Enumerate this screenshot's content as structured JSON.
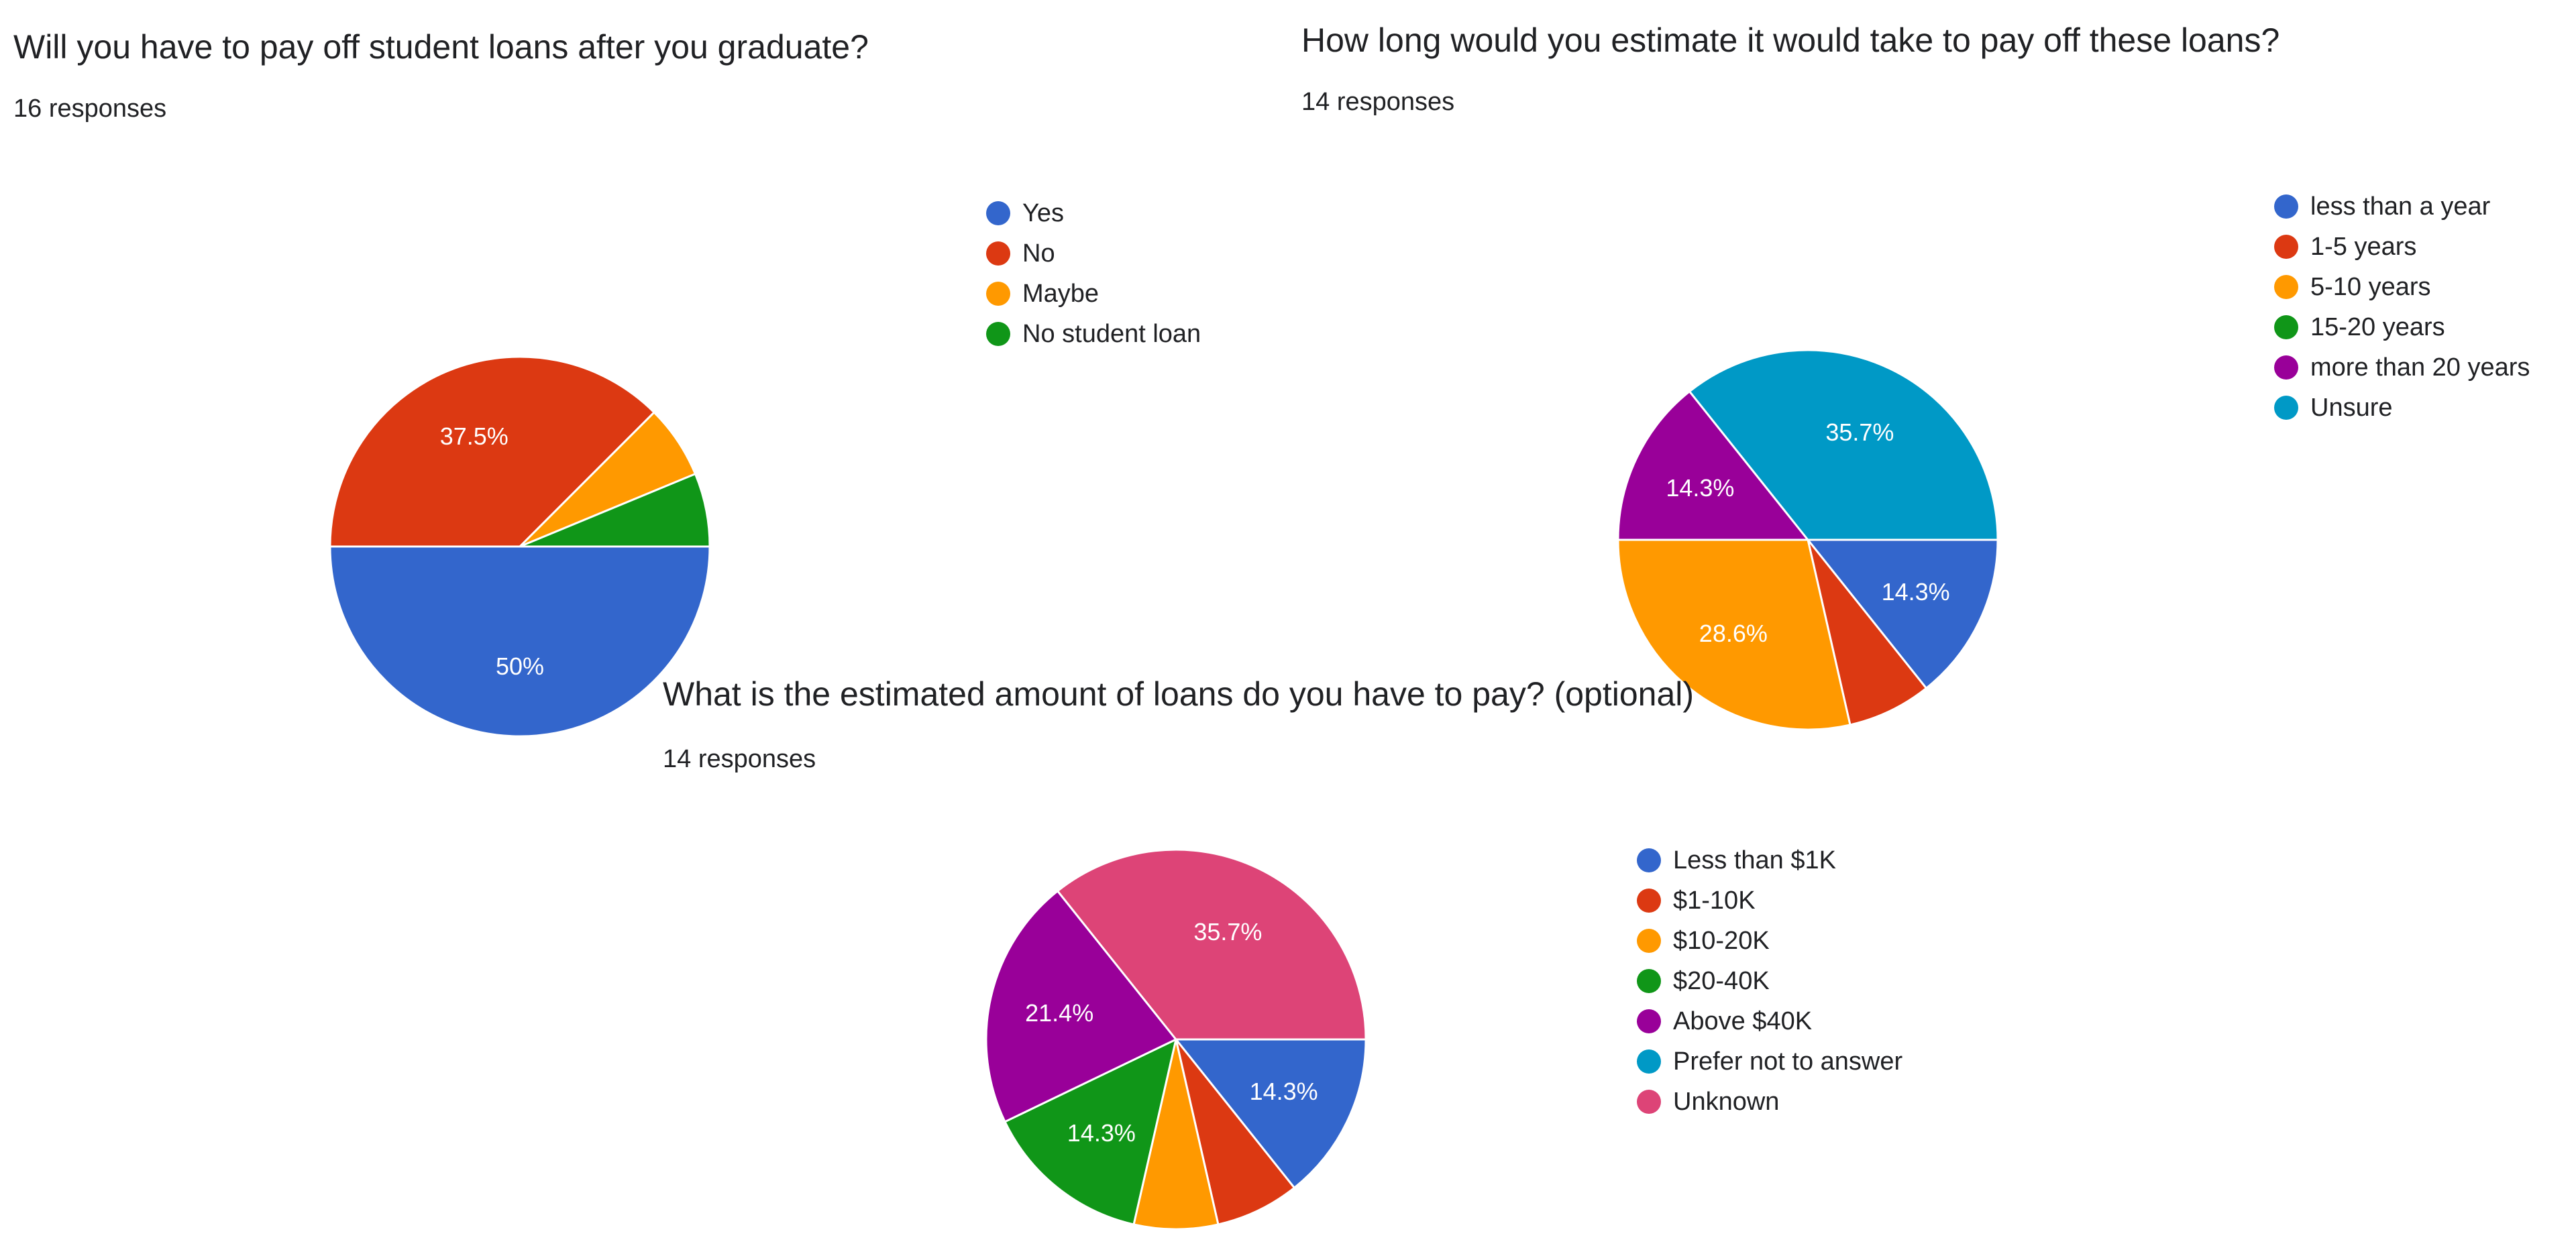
{
  "chart_data": [
    {
      "type": "pie",
      "title": "Will you have to pay off student loans after you graduate?",
      "subtitle": "16 responses",
      "categories": [
        "Yes",
        "No",
        "Maybe",
        "No student loan"
      ],
      "values": [
        8,
        6,
        1,
        1
      ],
      "percent_labels": [
        "50%",
        "37.5%",
        "",
        ""
      ],
      "colors": [
        "#3366cc",
        "#dc3912",
        "#ff9900",
        "#109618"
      ],
      "legend": "right"
    },
    {
      "type": "pie",
      "title": "How long would you estimate it would take to pay off these loans?",
      "subtitle": "14 responses",
      "categories": [
        "less than a year",
        "1-5 years",
        "5-10 years",
        "15-20 years",
        "more than 20 years",
        "Unsure"
      ],
      "values": [
        2,
        1,
        4,
        0,
        2,
        5
      ],
      "percent_labels": [
        "14.3%",
        "",
        "28.6%",
        "",
        "14.3%",
        "35.7%"
      ],
      "colors": [
        "#3366cc",
        "#dc3912",
        "#ff9900",
        "#109618",
        "#990099",
        "#0099c6"
      ],
      "legend": "right"
    },
    {
      "type": "pie",
      "title": "What is the estimated amount of loans do you have to pay? (optional)",
      "subtitle": "14 responses",
      "categories": [
        "Less than $1K",
        "$1-10K",
        "$10-20K",
        "$20-40K",
        "Above $40K",
        "Prefer not to answer",
        "Unknown"
      ],
      "values": [
        2,
        1,
        1,
        2,
        3,
        0,
        5
      ],
      "percent_labels": [
        "14.3%",
        "",
        "",
        "14.3%",
        "21.4%",
        "",
        "35.7%"
      ],
      "colors": [
        "#3366cc",
        "#dc3912",
        "#ff9900",
        "#109618",
        "#990099",
        "#0099c6",
        "#dd4477"
      ],
      "legend": "right"
    }
  ]
}
